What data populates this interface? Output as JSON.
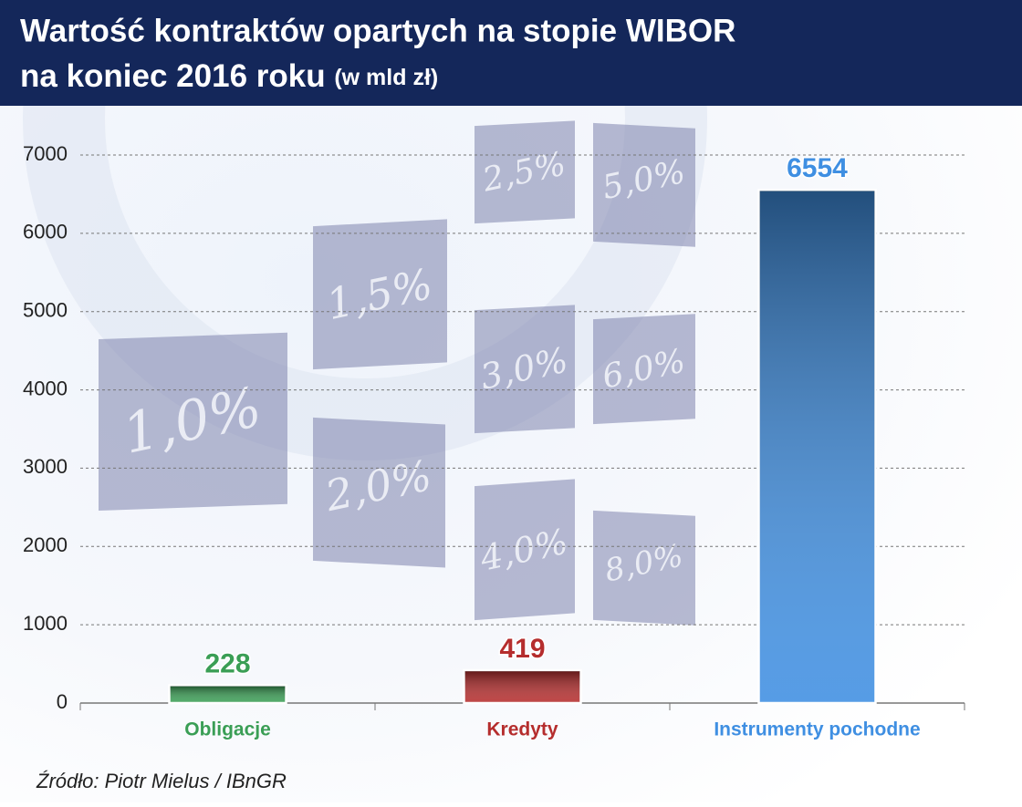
{
  "chart_data": {
    "type": "bar",
    "title": "Wartość kontraktów opartych na stopie WIBOR",
    "subtitle": "na koniec 2016 roku",
    "unit": "(w mld zł)",
    "categories": [
      "Obligacje",
      "Kredyty",
      "Instrumenty pochodne"
    ],
    "values": [
      228,
      419,
      6554
    ],
    "colors": [
      "#3a9e55",
      "#b52d2d",
      "#3f8fe2"
    ],
    "ylim": [
      0,
      7000
    ],
    "yticks": [
      0,
      1000,
      2000,
      3000,
      4000,
      5000,
      6000,
      7000
    ],
    "grid": true,
    "source": "Źródło: Piotr Mielus / IBnGR",
    "background_labels": [
      "1,0%",
      "1,5%",
      "2,0%",
      "2,5%",
      "3,0%",
      "4,0%",
      "5,0%",
      "6,0%",
      "8,0%"
    ]
  }
}
